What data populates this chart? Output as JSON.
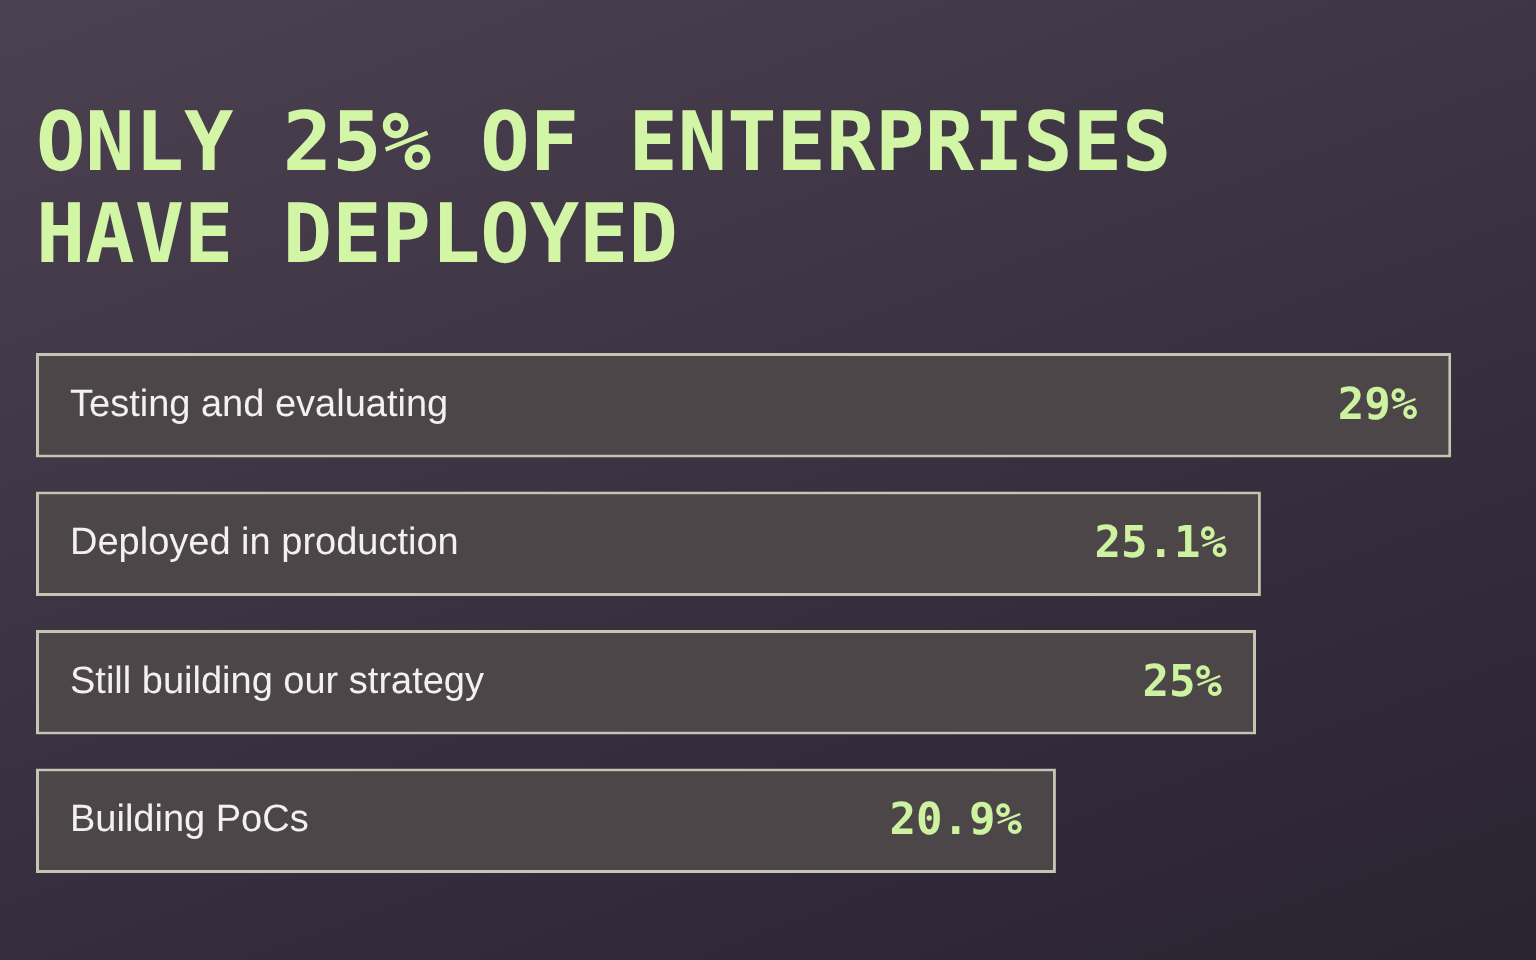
{
  "chart_data": {
    "type": "bar",
    "orientation": "horizontal",
    "title": "ONLY 25% OF ENTERPRISES HAVE DEPLOYED",
    "categories": [
      "Testing and evaluating",
      "Deployed in production",
      "Still building our strategy",
      "Building PoCs"
    ],
    "values": [
      29,
      25.1,
      25,
      20.9
    ],
    "color": "#4c4648",
    "value_labels": [
      "29%",
      "25.1%",
      "25%",
      "20.9%"
    ],
    "tick_labels": "y"
  }
}
